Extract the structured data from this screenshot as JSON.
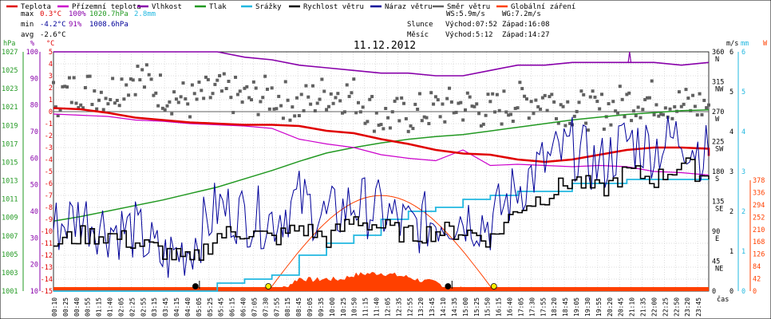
{
  "chart_data": {
    "type": "line",
    "title": "11.12.2012",
    "xlabel": "čas",
    "legend": [
      {
        "label": "Teplota",
        "color": "#e00000"
      },
      {
        "label": "Přízemní teplota",
        "color": "#cc00cc"
      },
      {
        "label": "Vlhkost",
        "color": "#8800aa"
      },
      {
        "label": "Tlak",
        "color": "#229922"
      },
      {
        "label": "Srážky",
        "color": "#22b8e0"
      },
      {
        "label": "Rychlost větru",
        "color": "#000000"
      },
      {
        "label": "Náraz větru",
        "color": "#000099"
      },
      {
        "label": "Směr větru",
        "color": "#606060"
      },
      {
        "label": "Globální záření",
        "color": "#ff4000"
      }
    ],
    "stats": {
      "max": {
        "label": "max",
        "temp": "0.3°C",
        "humidity": "100%",
        "pressure": "1020.7hPa",
        "rain": "2.8mm"
      },
      "min": {
        "label": "min",
        "temp": "-4.2°C",
        "humidity": "91%",
        "pressure": "1008.6hPa"
      },
      "avg": {
        "label": "avg",
        "temp": "-2.6°C"
      },
      "ws": "WS:5.9m/s",
      "wg": "WG:7.2m/s",
      "sun": {
        "label": "Slunce",
        "rise": "Východ:07:52",
        "set": "Západ:16:08"
      },
      "moon": {
        "label": "Měsíc",
        "rise": "Východ:5:12",
        "set": "Západ:14:27"
      }
    },
    "axes": {
      "hpa": {
        "unit": "hPa",
        "ticks": [
          "1027",
          "1025",
          "1023",
          "1021",
          "1019",
          "1017",
          "1015",
          "1013",
          "1011",
          "1009",
          "1007",
          "1005",
          "1003",
          "1001"
        ]
      },
      "pct": {
        "unit": "%",
        "ticks": [
          "100",
          "90",
          "80",
          "70",
          "60",
          "50",
          "40",
          "30",
          "20",
          "10"
        ]
      },
      "temp": {
        "unit": "°C",
        "ticks": [
          "5",
          "4",
          "3",
          "2",
          "1",
          "0",
          "-1",
          "-2",
          "-3",
          "-4",
          "-5",
          "-6",
          "-7",
          "-8",
          "-9",
          "-10",
          "-11",
          "-12",
          "-13",
          "-14",
          "-15"
        ]
      },
      "dir": {
        "ticks": [
          [
            "360",
            "N"
          ],
          [
            "315",
            "NW"
          ],
          [
            "270",
            "W"
          ],
          [
            "225",
            "SW"
          ],
          [
            "180",
            "S"
          ],
          [
            "135",
            "SE"
          ],
          [
            "90",
            "E"
          ],
          [
            "45",
            "NE"
          ],
          [
            "0",
            ""
          ]
        ]
      },
      "ms": {
        "unit": "m/s",
        "ticks": [
          "6",
          "5",
          "4",
          "3",
          "2",
          "1",
          "0"
        ]
      },
      "mm": {
        "unit": "mm",
        "ticks": [
          "6",
          "5",
          "4",
          "3",
          "2",
          "1",
          "0"
        ]
      },
      "w": {
        "unit": "W",
        "ticks": [
          "378",
          "336",
          "294",
          "252",
          "210",
          "168",
          "126",
          "84",
          "42",
          "0"
        ]
      }
    },
    "x_labels": [
      "00:10",
      "00:25",
      "00:40",
      "00:55",
      "01:15",
      "01:40",
      "02:05",
      "02:25",
      "02:55",
      "03:15",
      "03:45",
      "04:15",
      "04:40",
      "05:05",
      "05:25",
      "05:45",
      "06:15",
      "06:40",
      "07:05",
      "07:30",
      "07:55",
      "08:15",
      "08:45",
      "09:05",
      "09:35",
      "10:00",
      "10:25",
      "10:50",
      "11:15",
      "11:40",
      "12:05",
      "12:35",
      "12:55",
      "13:20",
      "13:45",
      "14:10",
      "14:35",
      "15:00",
      "15:25",
      "15:50",
      "16:15",
      "16:40",
      "17:05",
      "17:30",
      "17:55",
      "18:20",
      "18:45",
      "19:05",
      "19:30",
      "19:55",
      "20:20",
      "20:45",
      "21:10",
      "21:35",
      "22:00",
      "22:25",
      "22:50",
      "23:20",
      "23:45"
    ],
    "series": {
      "teplota": [
        [
          0,
          0.3
        ],
        [
          1,
          0.2
        ],
        [
          2,
          -0.1
        ],
        [
          3,
          -0.5
        ],
        [
          4,
          -0.7
        ],
        [
          5,
          -0.9
        ],
        [
          6,
          -1.0
        ],
        [
          7,
          -1.1
        ],
        [
          8,
          -1.1
        ],
        [
          9,
          -1.2
        ],
        [
          10,
          -1.6
        ],
        [
          11,
          -1.8
        ],
        [
          12,
          -2.3
        ],
        [
          13,
          -2.7
        ],
        [
          14,
          -3.2
        ],
        [
          15,
          -3.5
        ],
        [
          16,
          -3.6
        ],
        [
          17,
          -4.0
        ],
        [
          18,
          -4.2
        ],
        [
          19,
          -4.0
        ],
        [
          20,
          -3.6
        ],
        [
          21,
          -3.2
        ],
        [
          22,
          -3.0
        ],
        [
          23,
          -3.0
        ],
        [
          24,
          -3.1
        ],
        [
          24,
          -3.7
        ]
      ],
      "prizemni": [
        [
          0,
          -0.2
        ],
        [
          1,
          -0.3
        ],
        [
          2,
          -0.4
        ],
        [
          3,
          -0.7
        ],
        [
          4,
          -0.8
        ],
        [
          5,
          -1.0
        ],
        [
          6,
          -1.1
        ],
        [
          7,
          -1.2
        ],
        [
          8,
          -1.4
        ],
        [
          9,
          -2.3
        ],
        [
          10,
          -2.7
        ],
        [
          11,
          -3.0
        ],
        [
          12,
          -3.6
        ],
        [
          13,
          -3.9
        ],
        [
          14,
          -4.1
        ],
        [
          15,
          -3.2
        ],
        [
          16,
          -4.5
        ],
        [
          17,
          -4.4
        ],
        [
          18,
          -4.5
        ],
        [
          19,
          -4.6
        ],
        [
          20,
          -4.5
        ],
        [
          21,
          -4.6
        ],
        [
          22,
          -5.0
        ],
        [
          23,
          -5.1
        ],
        [
          24,
          -5.3
        ]
      ],
      "vlhkost": [
        [
          0,
          100
        ],
        [
          3,
          100
        ],
        [
          6,
          100
        ],
        [
          7,
          98
        ],
        [
          8,
          97
        ],
        [
          9,
          95
        ],
        [
          10,
          94
        ],
        [
          11,
          93
        ],
        [
          12,
          92
        ],
        [
          13,
          92
        ],
        [
          14,
          91
        ],
        [
          15,
          91
        ],
        [
          16,
          93
        ],
        [
          17,
          95
        ],
        [
          18,
          95
        ],
        [
          19,
          96
        ],
        [
          20,
          96
        ],
        [
          21,
          96
        ],
        [
          22,
          96
        ],
        [
          23,
          95
        ],
        [
          24,
          96
        ]
      ],
      "tlak": [
        [
          0,
          1008.6
        ],
        [
          1,
          1009.1
        ],
        [
          2,
          1009.7
        ],
        [
          3,
          1010.3
        ],
        [
          4,
          1010.9
        ],
        [
          5,
          1011.6
        ],
        [
          6,
          1012.3
        ],
        [
          7,
          1013.2
        ],
        [
          8,
          1014.1
        ],
        [
          9,
          1015.1
        ],
        [
          10,
          1016.0
        ],
        [
          11,
          1016.6
        ],
        [
          12,
          1017.1
        ],
        [
          13,
          1017.5
        ],
        [
          14,
          1017.8
        ],
        [
          15,
          1018.0
        ],
        [
          16,
          1018.4
        ],
        [
          17,
          1018.8
        ],
        [
          18,
          1019.2
        ],
        [
          19,
          1019.6
        ],
        [
          20,
          1019.9
        ],
        [
          21,
          1020.2
        ],
        [
          22,
          1020.4
        ],
        [
          23,
          1020.6
        ],
        [
          24,
          1020.7
        ]
      ],
      "srazky": [
        [
          0,
          0
        ],
        [
          5.5,
          0
        ],
        [
          6,
          0.2
        ],
        [
          7,
          0.3
        ],
        [
          8,
          0.4
        ],
        [
          9,
          0.9
        ],
        [
          10,
          1.2
        ],
        [
          11,
          1.4
        ],
        [
          12,
          1.8
        ],
        [
          13,
          2.0
        ],
        [
          14,
          2.1
        ],
        [
          15,
          2.3
        ],
        [
          16,
          2.4
        ],
        [
          17,
          2.5
        ],
        [
          18,
          2.5
        ],
        [
          19,
          2.7
        ],
        [
          20,
          2.7
        ],
        [
          21,
          2.8
        ],
        [
          24,
          2.8
        ]
      ],
      "rychlost": [
        [
          0,
          1.2
        ],
        [
          1,
          1.4
        ],
        [
          2,
          1.4
        ],
        [
          3,
          1.2
        ],
        [
          4,
          1.0
        ],
        [
          5,
          0.7
        ],
        [
          6,
          1.4
        ],
        [
          7,
          1.5
        ],
        [
          8,
          1.3
        ],
        [
          9,
          1.6
        ],
        [
          10,
          1.3
        ],
        [
          11,
          1.8
        ],
        [
          12,
          1.6
        ],
        [
          13,
          1.4
        ],
        [
          14,
          1.5
        ],
        [
          15,
          1.5
        ],
        [
          16,
          1.3
        ],
        [
          17,
          2.1
        ],
        [
          18,
          2.4
        ],
        [
          19,
          2.8
        ],
        [
          20,
          2.5
        ],
        [
          21,
          3.0
        ],
        [
          22,
          2.8
        ],
        [
          23,
          3.2
        ],
        [
          24,
          2.8
        ]
      ],
      "naraz": [
        [
          0,
          1.6
        ],
        [
          1,
          1.9
        ],
        [
          2,
          1.6
        ],
        [
          3,
          1.5
        ],
        [
          4,
          0.8
        ],
        [
          5,
          1.1
        ],
        [
          6,
          2.1
        ],
        [
          7,
          1.9
        ],
        [
          8,
          1.8
        ],
        [
          9,
          2.3
        ],
        [
          10,
          1.8
        ],
        [
          11,
          2.2
        ],
        [
          12,
          2.0
        ],
        [
          13,
          1.6
        ],
        [
          14,
          1.8
        ],
        [
          15,
          1.9
        ],
        [
          16,
          1.7
        ],
        [
          17,
          2.6
        ],
        [
          18,
          3.2
        ],
        [
          19,
          3.6
        ],
        [
          20,
          3.1
        ],
        [
          21,
          3.8
        ],
        [
          22,
          3.6
        ],
        [
          23,
          3.9
        ],
        [
          24,
          3.4
        ]
      ],
      "smer": [
        [
          0,
          290
        ],
        [
          1,
          305
        ],
        [
          2,
          298
        ],
        [
          3,
          325
        ],
        [
          4,
          300
        ],
        [
          5,
          285
        ],
        [
          6,
          300
        ],
        [
          7,
          290
        ],
        [
          8,
          295
        ],
        [
          9,
          280
        ],
        [
          10,
          298
        ],
        [
          11,
          295
        ],
        [
          12,
          260
        ],
        [
          13,
          265
        ],
        [
          14,
          275
        ],
        [
          15,
          280
        ],
        [
          16,
          270
        ],
        [
          17,
          285
        ],
        [
          18,
          290
        ],
        [
          19,
          275
        ],
        [
          20,
          270
        ],
        [
          21,
          285
        ],
        [
          22,
          290
        ],
        [
          23,
          280
        ],
        [
          24,
          280
        ]
      ],
      "zareni": [
        [
          7.87,
          0
        ],
        [
          8,
          4
        ],
        [
          8.5,
          13
        ],
        [
          9,
          45
        ],
        [
          9.5,
          38
        ],
        [
          10,
          42
        ],
        [
          10.5,
          40
        ],
        [
          11,
          55
        ],
        [
          11.5,
          60
        ],
        [
          12,
          62
        ],
        [
          12.5,
          55
        ],
        [
          13,
          48
        ],
        [
          13.5,
          35
        ],
        [
          14,
          30
        ],
        [
          14.5,
          10
        ],
        [
          15,
          8
        ],
        [
          15.5,
          4
        ],
        [
          16.13,
          0
        ]
      ]
    },
    "sun_rise_hour": 7.87,
    "sun_set_hour": 16.13,
    "moon_rise_hour": 5.2,
    "moon_set_hour": 14.45
  }
}
